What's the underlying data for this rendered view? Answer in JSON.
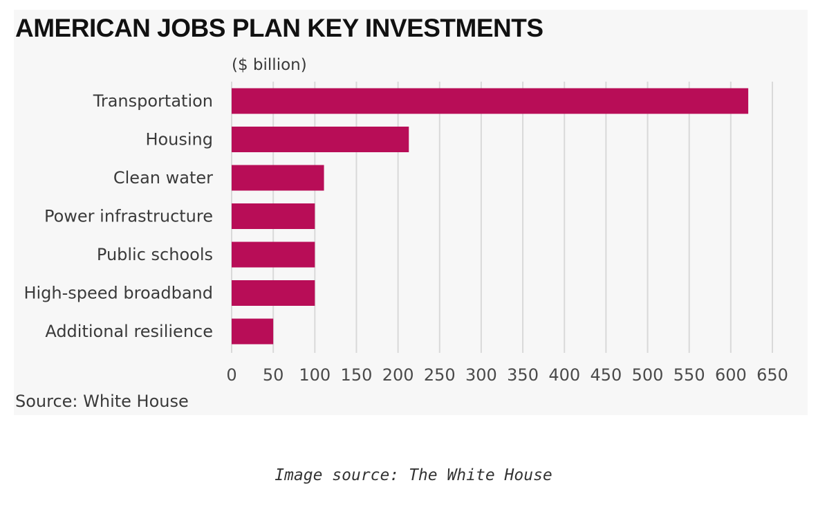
{
  "chart_data": {
    "type": "bar",
    "orientation": "horizontal",
    "title": "AMERICAN JOBS PLAN KEY INVESTMENTS",
    "unit_label": "($ billion)",
    "categories": [
      "Transportation",
      "Housing",
      "Clean water",
      "Power infrastructure",
      "Public schools",
      "High-speed broadband",
      "Additional resilience"
    ],
    "values": [
      621,
      213,
      111,
      100,
      100,
      100,
      50
    ],
    "xlim": [
      0,
      650
    ],
    "ticks": [
      0,
      50,
      100,
      150,
      200,
      250,
      300,
      350,
      400,
      450,
      500,
      550,
      600,
      650
    ],
    "grid": true,
    "bar_color": "#b80d57",
    "grid_color": "#d9d9d9",
    "source": "Source: White House"
  },
  "caption": "Image source: The White House"
}
